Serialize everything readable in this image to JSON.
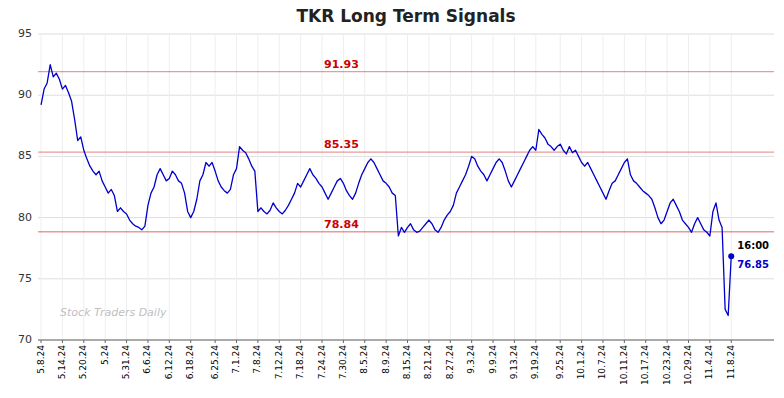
{
  "chart_data": {
    "type": "line",
    "title": "TKR Long Term Signals",
    "color": "#0000cc",
    "grid": true,
    "ylim": [
      70,
      95
    ],
    "yticks": [
      70,
      75,
      80,
      85,
      90,
      95
    ],
    "watermark": "Stock Traders Daily",
    "reference_lines": [
      {
        "value": 91.93,
        "label": "91.93",
        "color": "#cc0000"
      },
      {
        "value": 85.35,
        "label": "85.35",
        "color": "#cc0000"
      },
      {
        "value": 78.84,
        "label": "78.84",
        "color": "#cc0000"
      }
    ],
    "last_point": {
      "time": "16:00",
      "value": 76.85
    },
    "categories": [
      "5.8.24",
      null,
      null,
      null,
      null,
      null,
      null,
      "5.14.24",
      null,
      null,
      null,
      null,
      null,
      null,
      "5.20.24",
      null,
      null,
      null,
      null,
      null,
      null,
      "5.24",
      null,
      null,
      null,
      null,
      null,
      null,
      "5.31.24",
      null,
      null,
      null,
      null,
      null,
      null,
      "6.6.24",
      null,
      null,
      null,
      null,
      null,
      null,
      "6.12.24",
      null,
      null,
      null,
      null,
      null,
      null,
      "6.18.24",
      null,
      null,
      null,
      null,
      null,
      null,
      null,
      "6.25.24",
      null,
      null,
      null,
      null,
      null,
      null,
      "7.1.24",
      null,
      null,
      null,
      null,
      null,
      null,
      "7.8.24",
      null,
      null,
      null,
      null,
      null,
      null,
      "7.12.24",
      null,
      null,
      null,
      null,
      null,
      null,
      "7.18.24",
      null,
      null,
      null,
      null,
      null,
      null,
      "7.24.24",
      null,
      null,
      null,
      null,
      null,
      null,
      "7.30.24",
      null,
      null,
      null,
      null,
      null,
      null,
      "8.5.24",
      null,
      null,
      null,
      null,
      null,
      null,
      "8.9.24",
      null,
      null,
      null,
      null,
      null,
      null,
      "8.15.24",
      null,
      null,
      null,
      null,
      null,
      null,
      "8.21.24",
      null,
      null,
      null,
      null,
      null,
      null,
      "8.27.24",
      null,
      null,
      null,
      null,
      null,
      null,
      "9.3.24",
      null,
      null,
      null,
      null,
      null,
      null,
      "9.9.24",
      null,
      null,
      null,
      null,
      null,
      null,
      "9.13.24",
      null,
      null,
      null,
      null,
      null,
      null,
      "9.19.24",
      null,
      null,
      null,
      null,
      null,
      null,
      null,
      "9.25.24",
      null,
      null,
      null,
      null,
      null,
      null,
      "10.1.24",
      null,
      null,
      null,
      null,
      null,
      null,
      "10.7.24",
      null,
      null,
      null,
      null,
      null,
      null,
      "10.11.24",
      null,
      null,
      null,
      null,
      null,
      null,
      "10.17.24",
      null,
      null,
      null,
      null,
      null,
      null,
      "10.23.24",
      null,
      null,
      null,
      null,
      null,
      null,
      "10.29.24",
      null,
      null,
      null,
      null,
      null,
      null,
      "11.4.24",
      null,
      null,
      null,
      null,
      null,
      null,
      "11.8.24"
    ],
    "values": [
      89.2,
      90.5,
      91.0,
      92.5,
      91.5,
      91.8,
      91.3,
      90.5,
      90.8,
      90.2,
      89.5,
      88.0,
      86.3,
      86.6,
      85.5,
      84.8,
      84.2,
      83.8,
      83.5,
      83.8,
      83.0,
      82.5,
      82.0,
      82.3,
      81.8,
      80.5,
      80.8,
      80.5,
      80.3,
      79.8,
      79.5,
      79.3,
      79.2,
      79.0,
      79.3,
      81.0,
      82.0,
      82.5,
      83.5,
      84.0,
      83.5,
      83.0,
      83.2,
      83.8,
      83.5,
      83.0,
      82.8,
      82.0,
      80.5,
      80.0,
      80.5,
      81.5,
      83.0,
      83.5,
      84.5,
      84.2,
      84.5,
      83.8,
      83.0,
      82.5,
      82.2,
      82.0,
      82.3,
      83.5,
      84.0,
      85.8,
      85.5,
      85.3,
      84.8,
      84.2,
      83.8,
      80.5,
      80.8,
      80.5,
      80.3,
      80.6,
      81.2,
      80.8,
      80.5,
      80.3,
      80.6,
      81.0,
      81.5,
      82.0,
      82.8,
      82.5,
      83.0,
      83.5,
      84.0,
      83.5,
      83.2,
      82.8,
      82.5,
      82.0,
      81.5,
      82.0,
      82.5,
      83.0,
      83.2,
      82.8,
      82.2,
      81.8,
      81.5,
      82.0,
      82.8,
      83.5,
      84.0,
      84.5,
      84.8,
      84.5,
      84.0,
      83.5,
      83.0,
      82.8,
      82.5,
      82.0,
      81.8,
      78.5,
      79.2,
      78.8,
      79.2,
      79.5,
      79.0,
      78.8,
      78.9,
      79.2,
      79.5,
      79.8,
      79.5,
      79.0,
      78.8,
      79.2,
      79.8,
      80.2,
      80.5,
      81.0,
      82.0,
      82.5,
      83.0,
      83.5,
      84.2,
      85.0,
      84.8,
      84.2,
      83.8,
      83.5,
      83.0,
      83.5,
      84.0,
      84.5,
      84.8,
      84.5,
      83.8,
      83.0,
      82.5,
      83.0,
      83.5,
      84.0,
      84.5,
      85.0,
      85.5,
      85.8,
      85.5,
      87.2,
      86.8,
      86.5,
      86.0,
      85.8,
      85.5,
      85.8,
      86.0,
      85.5,
      85.2,
      85.8,
      85.3,
      85.5,
      85.0,
      84.5,
      84.2,
      84.5,
      84.0,
      83.5,
      83.0,
      82.5,
      82.0,
      81.5,
      82.2,
      82.8,
      83.0,
      83.5,
      84.0,
      84.5,
      84.8,
      83.5,
      83.0,
      82.8,
      82.5,
      82.2,
      82.0,
      81.8,
      81.5,
      80.8,
      80.0,
      79.5,
      79.8,
      80.5,
      81.2,
      81.5,
      81.0,
      80.5,
      79.8,
      79.5,
      79.2,
      78.8,
      79.5,
      80.0,
      79.5,
      79.0,
      78.8,
      78.5,
      80.5,
      81.2,
      79.8,
      79.2,
      72.5,
      72.0,
      76.85
    ]
  }
}
